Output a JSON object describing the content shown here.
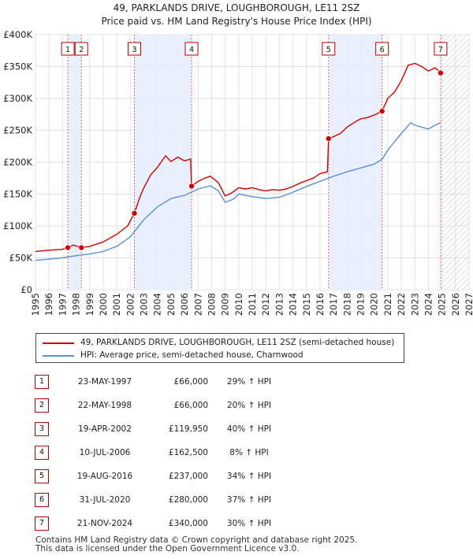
{
  "chart_data": {
    "type": "line",
    "title": "49, PARKLANDS DRIVE, LOUGHBOROUGH, LE11 2SZ",
    "subtitle": "Price paid vs. HM Land Registry's House Price Index (HPI)",
    "xlim": [
      1995,
      2027
    ],
    "ylim": [
      0,
      400000
    ],
    "x_ticks": [
      "1995",
      "1996",
      "1997",
      "1998",
      "1999",
      "2000",
      "2001",
      "2002",
      "2003",
      "2004",
      "2005",
      "2006",
      "2007",
      "2008",
      "2009",
      "2010",
      "2011",
      "2012",
      "2013",
      "2014",
      "2015",
      "2016",
      "2017",
      "2018",
      "2019",
      "2020",
      "2021",
      "2022",
      "2023",
      "2024",
      "2025",
      "2026",
      "2027"
    ],
    "y_ticks": [
      {
        "value": 0,
        "label": "£0"
      },
      {
        "value": 50000,
        "label": "£50K"
      },
      {
        "value": 100000,
        "label": "£100K"
      },
      {
        "value": 150000,
        "label": "£150K"
      },
      {
        "value": 200000,
        "label": "£200K"
      },
      {
        "value": 250000,
        "label": "£250K"
      },
      {
        "value": 300000,
        "label": "£300K"
      },
      {
        "value": 350000,
        "label": "£350K"
      },
      {
        "value": 400000,
        "label": "£400K"
      }
    ],
    "grid": true,
    "shaded_periods": [
      [
        1997.39,
        1998.39
      ],
      [
        2002.3,
        2006.52
      ],
      [
        2016.63,
        2020.58
      ]
    ],
    "future_hatch_from": 2024.9,
    "series": [
      {
        "name": "49, PARKLANDS DRIVE, LOUGHBOROUGH, LE11 2SZ (semi-detached house)",
        "color": "#cc0000",
        "points": [
          [
            1995,
            60000
          ],
          [
            1996,
            62000
          ],
          [
            1997,
            63500
          ],
          [
            1997.39,
            66000
          ],
          [
            1997.8,
            70000
          ],
          [
            1998.39,
            66000
          ],
          [
            1999,
            68000
          ],
          [
            2000,
            75000
          ],
          [
            2001,
            87000
          ],
          [
            2001.8,
            100000
          ],
          [
            2002.3,
            119950
          ],
          [
            2002.7,
            145000
          ],
          [
            2003,
            160000
          ],
          [
            2003.5,
            180000
          ],
          [
            2004,
            192000
          ],
          [
            2004.6,
            210000
          ],
          [
            2005,
            201000
          ],
          [
            2005.5,
            208000
          ],
          [
            2006,
            202000
          ],
          [
            2006.45,
            205000
          ],
          [
            2006.52,
            162500
          ],
          [
            2007,
            170000
          ],
          [
            2007.5,
            175000
          ],
          [
            2007.9,
            178000
          ],
          [
            2008.5,
            168000
          ],
          [
            2009,
            147000
          ],
          [
            2009.5,
            152000
          ],
          [
            2010,
            160000
          ],
          [
            2010.5,
            158000
          ],
          [
            2011,
            160000
          ],
          [
            2011.5,
            157000
          ],
          [
            2012,
            155000
          ],
          [
            2012.5,
            157000
          ],
          [
            2013,
            156000
          ],
          [
            2013.5,
            158000
          ],
          [
            2014,
            162000
          ],
          [
            2014.5,
            167000
          ],
          [
            2015,
            171000
          ],
          [
            2015.5,
            175000
          ],
          [
            2016,
            182000
          ],
          [
            2016.55,
            185000
          ],
          [
            2016.63,
            237000
          ],
          [
            2017,
            240000
          ],
          [
            2017.5,
            245000
          ],
          [
            2018,
            255000
          ],
          [
            2018.5,
            262000
          ],
          [
            2019,
            268000
          ],
          [
            2019.5,
            270000
          ],
          [
            2020,
            274000
          ],
          [
            2020.58,
            280000
          ],
          [
            2021,
            300000
          ],
          [
            2021.5,
            310000
          ],
          [
            2022,
            328000
          ],
          [
            2022.5,
            352000
          ],
          [
            2023,
            355000
          ],
          [
            2023.5,
            350000
          ],
          [
            2024,
            343000
          ],
          [
            2024.5,
            348000
          ],
          [
            2024.9,
            340000
          ]
        ]
      },
      {
        "name": "HPI: Average price, semi-detached house, Charnwood",
        "color": "#5b8fd0",
        "points": [
          [
            1995,
            46000
          ],
          [
            1996,
            48000
          ],
          [
            1997,
            50000
          ],
          [
            1998,
            53500
          ],
          [
            1999,
            56000
          ],
          [
            2000,
            60000
          ],
          [
            2001,
            68000
          ],
          [
            2002,
            83000
          ],
          [
            2003,
            110000
          ],
          [
            2004,
            130000
          ],
          [
            2005,
            143000
          ],
          [
            2006,
            148000
          ],
          [
            2007,
            158000
          ],
          [
            2007.9,
            163000
          ],
          [
            2008.5,
            155000
          ],
          [
            2009,
            137000
          ],
          [
            2009.6,
            142000
          ],
          [
            2010,
            150000
          ],
          [
            2011,
            146000
          ],
          [
            2012,
            143000
          ],
          [
            2013,
            145000
          ],
          [
            2014,
            153000
          ],
          [
            2015,
            162000
          ],
          [
            2016,
            170000
          ],
          [
            2017,
            178000
          ],
          [
            2018,
            185000
          ],
          [
            2019,
            191000
          ],
          [
            2020,
            197000
          ],
          [
            2020.6,
            205000
          ],
          [
            2021,
            219000
          ],
          [
            2022,
            245000
          ],
          [
            2022.7,
            262000
          ],
          [
            2023,
            258000
          ],
          [
            2023.5,
            255000
          ],
          [
            2024,
            252000
          ],
          [
            2024.5,
            258000
          ],
          [
            2024.9,
            262000
          ]
        ]
      }
    ],
    "sales": [
      {
        "n": "1",
        "x": 1997.39,
        "y": 66000
      },
      {
        "n": "2",
        "x": 1998.39,
        "y": 66000
      },
      {
        "n": "3",
        "x": 2002.3,
        "y": 119950
      },
      {
        "n": "4",
        "x": 2006.52,
        "y": 162500
      },
      {
        "n": "5",
        "x": 2016.63,
        "y": 237000
      },
      {
        "n": "6",
        "x": 2020.58,
        "y": 280000
      },
      {
        "n": "7",
        "x": 2024.9,
        "y": 340000
      }
    ]
  },
  "legend": {
    "red_label": "49, PARKLANDS DRIVE, LOUGHBOROUGH, LE11 2SZ (semi-detached house)",
    "blue_label": "HPI: Average price, semi-detached house, Charnwood"
  },
  "table": {
    "rows": [
      {
        "n": "1",
        "date": "23-MAY-1997",
        "price": "£66,000",
        "hpi": "29% ↑ HPI"
      },
      {
        "n": "2",
        "date": "22-MAY-1998",
        "price": "£66,000",
        "hpi": "20% ↑ HPI"
      },
      {
        "n": "3",
        "date": "19-APR-2002",
        "price": "£119,950",
        "hpi": "40% ↑ HPI"
      },
      {
        "n": "4",
        "date": "10-JUL-2006",
        "price": "£162,500",
        "hpi": "8% ↑ HPI"
      },
      {
        "n": "5",
        "date": "19-AUG-2016",
        "price": "£237,000",
        "hpi": "34% ↑ HPI"
      },
      {
        "n": "6",
        "date": "31-JUL-2020",
        "price": "£280,000",
        "hpi": "37% ↑ HPI"
      },
      {
        "n": "7",
        "date": "21-NOV-2024",
        "price": "£340,000",
        "hpi": "30% ↑ HPI"
      }
    ]
  },
  "footer": {
    "line1": "Contains HM Land Registry data © Crown copyright and database right 2025.",
    "line2": "This data is licensed under the Open Government Licence v3.0."
  }
}
